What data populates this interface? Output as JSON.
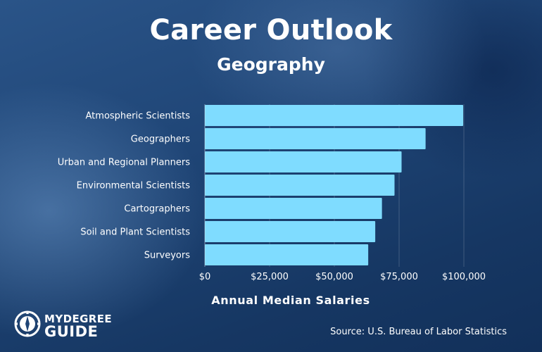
{
  "header": {
    "title": "Career Outlook",
    "subtitle": "Geography"
  },
  "chart_data": {
    "type": "bar",
    "orientation": "horizontal",
    "categories": [
      "Atmospheric Scientists",
      "Geographers",
      "Urban and Regional Planners",
      "Environmental Scientists",
      "Cartographers",
      "Soil and Plant Scientists",
      "Surveyors"
    ],
    "values": [
      99740,
      85220,
      75950,
      73230,
      68380,
      65790,
      63080
    ],
    "xlabel": "Annual Median Salaries",
    "xlim": [
      0,
      100000
    ],
    "xticks": [
      0,
      25000,
      50000,
      75000,
      100000
    ],
    "xtick_labels": [
      "$0",
      "$25,000",
      "$50,000",
      "$75,000",
      "$100,000"
    ],
    "grid": "vertical",
    "bar_color": "#7fdcff"
  },
  "footer": {
    "logo_line1": "MYDEGREE",
    "logo_line2": "GUIDE",
    "logo_icon": "compass-icon",
    "source": "Source: U.S. Bureau of Labor Statistics"
  }
}
